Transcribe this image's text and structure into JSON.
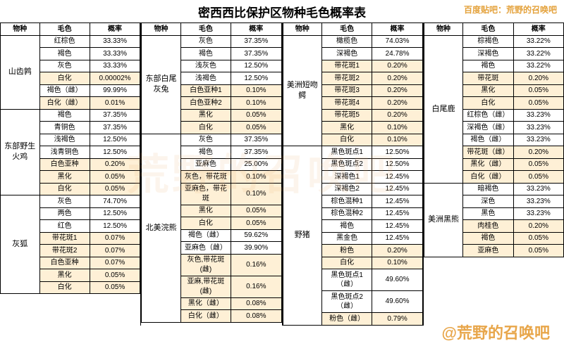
{
  "title": "密西西比保护区物种毛色概率表",
  "headerLink": "百度贴吧：荒野的召唤吧",
  "watermark1": "荒野的召唤吧",
  "watermark2": "@荒野的召唤吧",
  "headers": {
    "species": "物种",
    "color": "毛色",
    "prob": "概率"
  },
  "colors": {
    "highlight": "#fef0d6",
    "accent": "#e8a64a",
    "border": "#000000",
    "background": "#ffffff"
  },
  "columns": [
    {
      "groups": [
        {
          "species": "山齿鹑",
          "rows": [
            {
              "c": "红棕色",
              "p": "33.33%"
            },
            {
              "c": "褐色",
              "p": "33.33%"
            },
            {
              "c": "灰色",
              "p": "33.33%"
            },
            {
              "c": "白化",
              "p": "0.00002%",
              "hl": true
            },
            {
              "c": "褐色（雌）",
              "p": "99.99%"
            },
            {
              "c": "白化（雌）",
              "p": "0.01%",
              "hl": true
            }
          ]
        },
        {
          "species": "东部野生火鸡",
          "rows": [
            {
              "c": "褐色",
              "p": "37.35%"
            },
            {
              "c": "青铜色",
              "p": "37.35%"
            },
            {
              "c": "浅褐色",
              "p": "12.50%"
            },
            {
              "c": "浅青铜色",
              "p": "12.50%"
            },
            {
              "c": "白色亚种",
              "p": "0.20%",
              "hl": true
            },
            {
              "c": "黑化",
              "p": "0.05%",
              "hl": true
            },
            {
              "c": "白化",
              "p": "0.05%",
              "hl": true
            }
          ]
        },
        {
          "species": "灰狐",
          "rows": [
            {
              "c": "灰色",
              "p": "74.70%"
            },
            {
              "c": "两色",
              "p": "12.50%"
            },
            {
              "c": "红色",
              "p": "12.50%"
            },
            {
              "c": "带花斑1",
              "p": "0.07%",
              "hl": true
            },
            {
              "c": "带花斑2",
              "p": "0.07%",
              "hl": true
            },
            {
              "c": "白色亚种",
              "p": "0.07%",
              "hl": true
            },
            {
              "c": "黑化",
              "p": "0.05%",
              "hl": true
            },
            {
              "c": "白化",
              "p": "0.05%",
              "hl": true
            }
          ]
        }
      ]
    },
    {
      "groups": [
        {
          "species": "东部白尾灰兔",
          "rows": [
            {
              "c": "灰色",
              "p": "37.35%"
            },
            {
              "c": "褐色",
              "p": "37.35%"
            },
            {
              "c": "浅灰色",
              "p": "12.50%"
            },
            {
              "c": "浅褐色",
              "p": "12.50%"
            },
            {
              "c": "白色亚种1",
              "p": "0.10%",
              "hl": true
            },
            {
              "c": "白色亚种2",
              "p": "0.10%",
              "hl": true
            },
            {
              "c": "黑化",
              "p": "0.05%",
              "hl": true
            },
            {
              "c": "白化",
              "p": "0.05%",
              "hl": true
            }
          ]
        },
        {
          "species": "北美浣熊",
          "rows": [
            {
              "c": "灰色",
              "p": "37.35%"
            },
            {
              "c": "褐色",
              "p": "37.35%"
            },
            {
              "c": "亚麻色",
              "p": "25.00%"
            },
            {
              "c": "灰色，带花斑",
              "p": "0.10%",
              "hl": true
            },
            {
              "c": "亚麻色，带花斑",
              "p": "0.10%",
              "hl": true
            },
            {
              "c": "黑化",
              "p": "0.05%",
              "hl": true
            },
            {
              "c": "白化",
              "p": "0.05%",
              "hl": true
            },
            {
              "c": "褐色（雌）",
              "p": "59.62%"
            },
            {
              "c": "亚麻色（雌）",
              "p": "39.90%"
            },
            {
              "c": "灰色,带花斑(雌)",
              "p": "0.16%",
              "hl": true
            },
            {
              "c": "亚麻,带花斑(雌)",
              "p": "0.16%",
              "hl": true
            },
            {
              "c": "黑化（雌）",
              "p": "0.08%",
              "hl": true
            },
            {
              "c": "白化（雌）",
              "p": "0.08%",
              "hl": true
            }
          ]
        }
      ]
    },
    {
      "groups": [
        {
          "species": "美洲短吻鳄",
          "rows": [
            {
              "c": "橄榄色",
              "p": "74.03%"
            },
            {
              "c": "深褐色",
              "p": "24.78%"
            },
            {
              "c": "带花斑1",
              "p": "0.20%",
              "hl": true
            },
            {
              "c": "带花斑2",
              "p": "0.20%",
              "hl": true
            },
            {
              "c": "带花斑3",
              "p": "0.20%",
              "hl": true
            },
            {
              "c": "带花斑4",
              "p": "0.20%",
              "hl": true
            },
            {
              "c": "带花斑5",
              "p": "0.20%",
              "hl": true
            },
            {
              "c": "黑化",
              "p": "0.10%",
              "hl": true
            },
            {
              "c": "白化",
              "p": "0.10%",
              "hl": true
            }
          ]
        },
        {
          "species": "野猪",
          "rows": [
            {
              "c": "黑色斑点1",
              "p": "12.50%"
            },
            {
              "c": "黑色斑点2",
              "p": "12.50%"
            },
            {
              "c": "深褐色1",
              "p": "12.45%"
            },
            {
              "c": "深褐色2",
              "p": "12.45%"
            },
            {
              "c": "棕色混种1",
              "p": "12.45%"
            },
            {
              "c": "棕色混种2",
              "p": "12.45%"
            },
            {
              "c": "褐色",
              "p": "12.45%"
            },
            {
              "c": "黑金色",
              "p": "12.45%"
            },
            {
              "c": "粉色",
              "p": "0.20%",
              "hl": true
            },
            {
              "c": "白化",
              "p": "0.10%",
              "hl": true
            },
            {
              "c": "黑色斑点1（雌）",
              "p": "49.60%"
            },
            {
              "c": "黑色斑点2（雌）",
              "p": "49.60%"
            },
            {
              "c": "粉色（雌）",
              "p": "0.79%",
              "hl": true
            }
          ]
        }
      ]
    },
    {
      "groups": [
        {
          "species": "白尾鹿",
          "rows": [
            {
              "c": "棕褐色",
              "p": "33.22%"
            },
            {
              "c": "深褐色",
              "p": "33.22%"
            },
            {
              "c": "褐色",
              "p": "33.22%"
            },
            {
              "c": "带花斑",
              "p": "0.20%",
              "hl": true
            },
            {
              "c": "黑化",
              "p": "0.05%",
              "hl": true
            },
            {
              "c": "白化",
              "p": "0.05%",
              "hl": true
            },
            {
              "c": "红棕色（雌）",
              "p": "33.23%"
            },
            {
              "c": "深褐色（雌）",
              "p": "33.23%"
            },
            {
              "c": "褐色（雌）",
              "p": "33.23%"
            },
            {
              "c": "带花斑（雌）",
              "p": "0.20%",
              "hl": true
            },
            {
              "c": "黑化（雌）",
              "p": "0.05%",
              "hl": true
            },
            {
              "c": "白化（雌）",
              "p": "0.05%",
              "hl": true
            }
          ]
        },
        {
          "species": "美洲黑熊",
          "rows": [
            {
              "c": "暗褐色",
              "p": "33.23%"
            },
            {
              "c": "深色",
              "p": "33.23%"
            },
            {
              "c": "黑色",
              "p": "33.23%"
            },
            {
              "c": "肉桂色",
              "p": "0.20%",
              "hl": true
            },
            {
              "c": "褐色",
              "p": "0.05%",
              "hl": true
            },
            {
              "c": "亚麻色",
              "p": "0.05%",
              "hl": true
            }
          ]
        }
      ]
    }
  ]
}
